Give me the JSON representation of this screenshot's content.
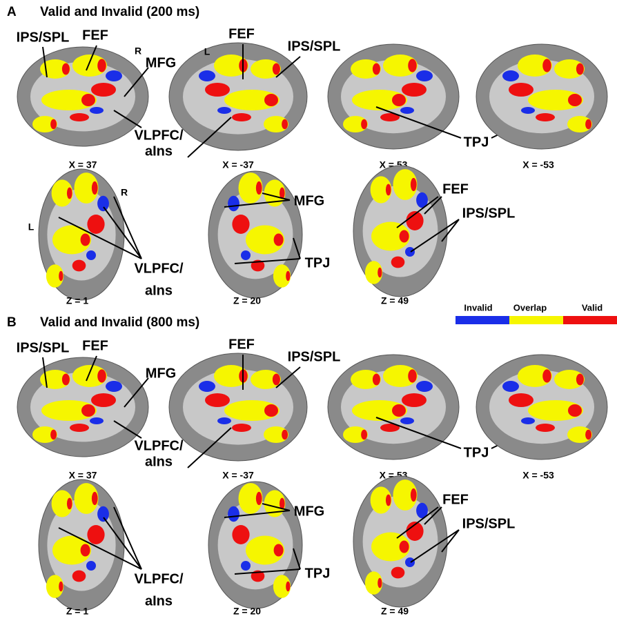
{
  "panels": [
    {
      "letter": "A",
      "title": "Valid and Invalid (200 ms)",
      "views": [
        {
          "caption": "X = 37",
          "labels": [
            "IPS/SPL",
            "FEF",
            "MFG",
            "VLPFC/",
            "aIns"
          ],
          "orientation": [
            "R"
          ]
        },
        {
          "caption": "X = -37",
          "labels": [
            "FEF",
            "IPS/SPL"
          ],
          "orientation": [
            "L"
          ]
        },
        {
          "caption": "X = 53",
          "labels": [
            "TPJ"
          ]
        },
        {
          "caption": "X = -53"
        },
        {
          "caption": "Z = 1",
          "labels": [
            "VLPFC/",
            "aIns"
          ],
          "orientation": [
            "L",
            "R"
          ]
        },
        {
          "caption": "Z = 20",
          "labels": [
            "MFG",
            "TPJ"
          ]
        },
        {
          "caption": "Z = 49",
          "labels": [
            "FEF",
            "IPS/SPL"
          ]
        }
      ]
    },
    {
      "letter": "B",
      "title": "Valid and Invalid (800 ms)",
      "views": [
        {
          "caption": "X = 37",
          "labels": [
            "IPS/SPL",
            "FEF",
            "MFG",
            "VLPFC/",
            "aIns"
          ]
        },
        {
          "caption": "X = -37",
          "labels": [
            "FEF",
            "IPS/SPL"
          ]
        },
        {
          "caption": "X = 53",
          "labels": [
            "TPJ"
          ]
        },
        {
          "caption": "X = -53"
        },
        {
          "caption": "Z = 1",
          "labels": [
            "VLPFC/",
            "aIns"
          ]
        },
        {
          "caption": "Z = 20",
          "labels": [
            "MFG",
            "TPJ"
          ]
        },
        {
          "caption": "Z = 49",
          "labels": [
            "FEF",
            "IPS/SPL"
          ]
        }
      ]
    }
  ],
  "legend": [
    {
      "label": "Invalid",
      "color": "#1a2ee8"
    },
    {
      "label": "Overlap",
      "color": "#f6f600"
    },
    {
      "label": "Valid",
      "color": "#ee1010"
    }
  ]
}
